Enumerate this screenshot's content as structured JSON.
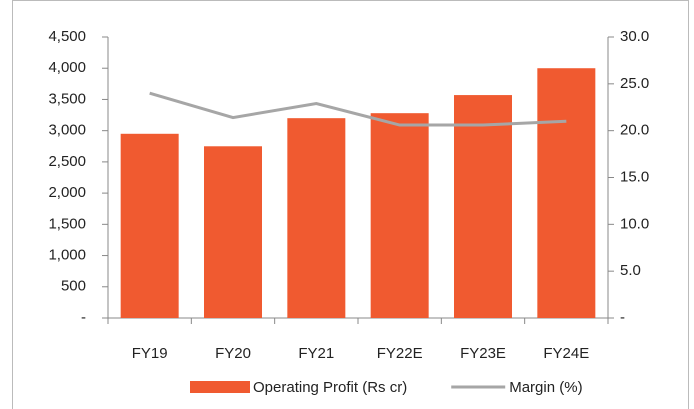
{
  "chart_data": {
    "type": "bar",
    "categories": [
      "FY19",
      "FY20",
      "FY21",
      "FY22E",
      "FY23E",
      "FY24E"
    ],
    "series": [
      {
        "name": "Operating Profit (Rs cr)",
        "type": "bar",
        "color": "#f05a30",
        "values": [
          2950,
          2750,
          3200,
          3280,
          3570,
          4000
        ]
      },
      {
        "name": "Margin (%)",
        "type": "line",
        "axis": "y2",
        "color": "#a6a6a6",
        "values": [
          24.0,
          21.4,
          22.9,
          20.6,
          20.6,
          21.0
        ]
      }
    ],
    "ylim": [
      0,
      4500
    ],
    "yticks": [
      {
        "value": 0,
        "label": "-"
      },
      500,
      {
        "value": 1000,
        "label": "1,000"
      },
      {
        "value": 1500,
        "label": "1,500"
      },
      {
        "value": 2000,
        "label": "2,000"
      },
      {
        "value": 2500,
        "label": "2,500"
      },
      {
        "value": 3000,
        "label": "3,000"
      },
      {
        "value": 3500,
        "label": "3,500"
      },
      {
        "value": 4000,
        "label": "4,000"
      },
      {
        "value": 4500,
        "label": "4,500"
      }
    ],
    "y2lim": [
      0,
      30
    ],
    "y2ticks": [
      {
        "value": 0,
        "label": "-"
      },
      {
        "value": 5,
        "label": "5.0"
      },
      {
        "value": 10,
        "label": "10.0"
      },
      {
        "value": 15,
        "label": "15.0"
      },
      {
        "value": 20,
        "label": "20.0"
      },
      {
        "value": 25,
        "label": "25.0"
      },
      {
        "value": 30,
        "label": "30.0"
      }
    ],
    "legend": "bottom",
    "grid": false
  }
}
